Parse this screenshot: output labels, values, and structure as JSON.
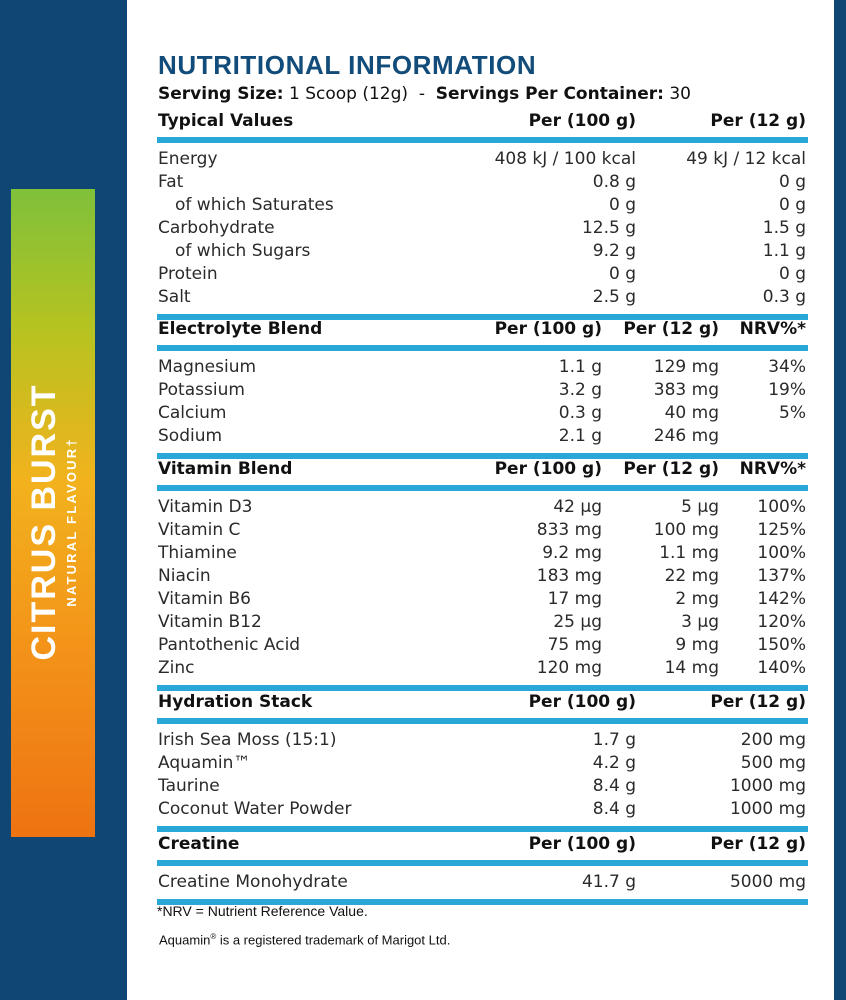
{
  "flavour": {
    "name": "CITRUS BURST",
    "sub": "NATURAL FLAVOUR†"
  },
  "title": "NUTRITIONAL INFORMATION",
  "serving": {
    "size_label": "Serving Size:",
    "size_value": "1 Scoop (12g)",
    "sep": "-",
    "containers_label": "Servings Per Container:",
    "containers_value": "30"
  },
  "typical": {
    "h": [
      "Typical Values",
      "Per (100 g)",
      "Per (12 g)"
    ],
    "rows": [
      [
        "Energy",
        "408 kJ / 100 kcal",
        "49 kJ / 12 kcal"
      ],
      [
        "Fat",
        "0.8 g",
        "0 g"
      ],
      [
        "of which Saturates",
        "0 g",
        "0 g"
      ],
      [
        "Carbohydrate",
        "12.5 g",
        "1.5 g"
      ],
      [
        "of which Sugars",
        "9.2 g",
        "1.1 g"
      ],
      [
        "Protein",
        "0 g",
        "0 g"
      ],
      [
        "Salt",
        "2.5 g",
        "0.3 g"
      ]
    ]
  },
  "electrolyte": {
    "h": [
      "Electrolyte Blend",
      "Per (100 g)",
      "Per (12 g)",
      "NRV%*"
    ],
    "rows": [
      [
        "Magnesium",
        "1.1 g",
        "129 mg",
        "34%"
      ],
      [
        "Potassium",
        "3.2 g",
        "383 mg",
        "19%"
      ],
      [
        "Calcium",
        "0.3 g",
        "40 mg",
        "5%"
      ],
      [
        "Sodium",
        "2.1 g",
        "246 mg",
        ""
      ]
    ]
  },
  "vitamin": {
    "h": [
      "Vitamin Blend",
      "Per (100 g)",
      "Per (12 g)",
      "NRV%*"
    ],
    "rows": [
      [
        "Vitamin D3",
        "42 µg",
        "5 µg",
        "100%"
      ],
      [
        "Vitamin C",
        "833 mg",
        "100 mg",
        "125%"
      ],
      [
        "Thiamine",
        "9.2 mg",
        "1.1 mg",
        "100%"
      ],
      [
        "Niacin",
        "183 mg",
        "22 mg",
        "137%"
      ],
      [
        "Vitamin B6",
        "17 mg",
        "2 mg",
        "142%"
      ],
      [
        "Vitamin B12",
        "25 µg",
        "3 µg",
        "120%"
      ],
      [
        "Pantothenic Acid",
        "75 mg",
        "9 mg",
        "150%"
      ],
      [
        "Zinc",
        "120 mg",
        "14 mg",
        "140%"
      ]
    ]
  },
  "hydration": {
    "h": [
      "Hydration Stack",
      "Per (100 g)",
      "Per (12 g)"
    ],
    "rows": [
      [
        "Irish Sea Moss (15:1)",
        "1.7 g",
        "200 mg"
      ],
      [
        "Aquamin™",
        "4.2 g",
        "500 mg"
      ],
      [
        "Taurine",
        "8.4 g",
        "1000 mg"
      ],
      [
        "Coconut Water Powder",
        "8.4 g",
        "1000 mg"
      ]
    ]
  },
  "creatine": {
    "h": [
      "Creatine",
      "Per (100 g)",
      "Per (12 g)"
    ],
    "rows": [
      [
        "Creatine Monohydrate",
        "41.7 g",
        "5000 mg"
      ]
    ]
  },
  "footnote_nrv": "*NRV = Nutrient Reference Value.",
  "footnote_trademark": {
    "brand": "Aquamin",
    "mark": "®",
    "text": " is a registered trademark of Marigot Ltd."
  },
  "colors": {
    "navy": "#0f4674",
    "accent_bar": "#29a8d8",
    "title": "#124c7a"
  }
}
